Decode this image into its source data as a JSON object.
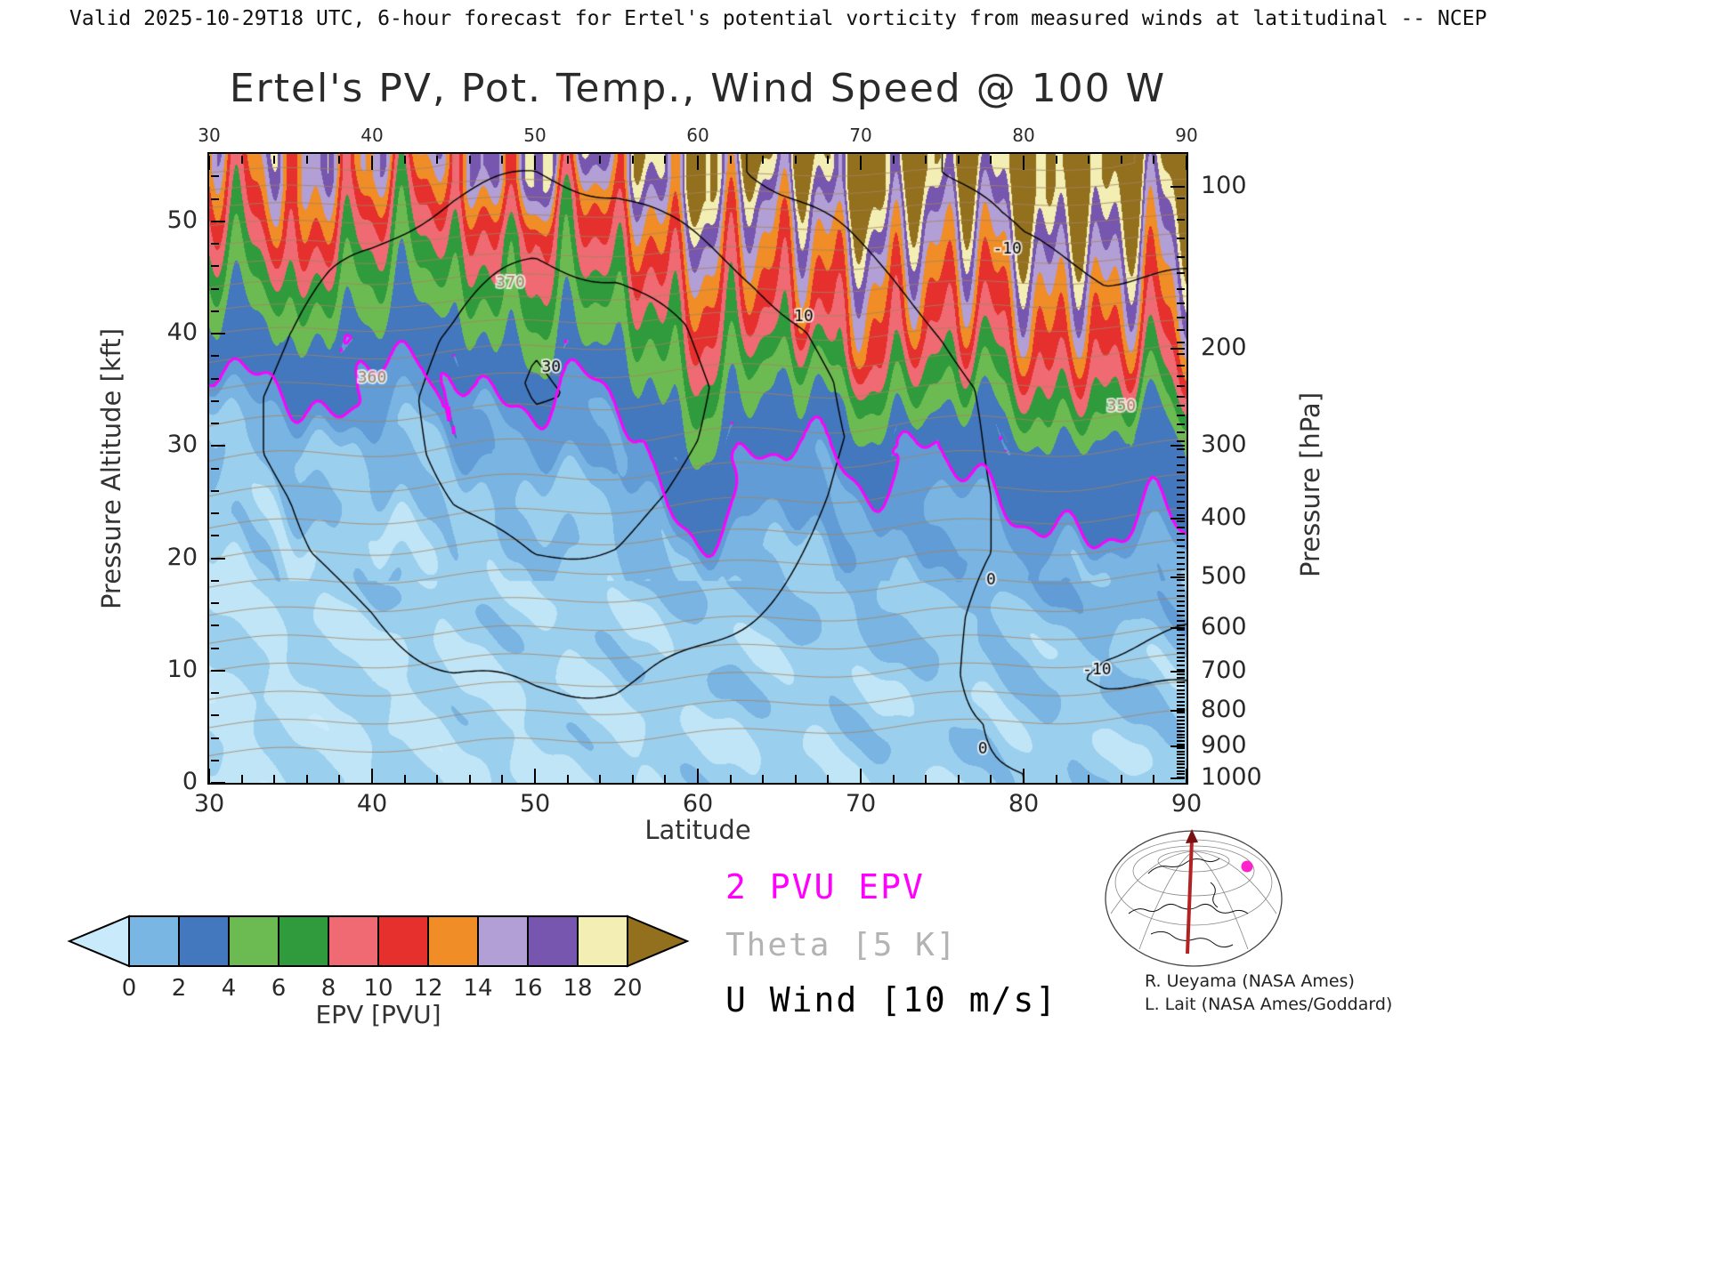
{
  "header": {
    "text": "Valid 2025-10-29T18 UTC, 6-hour forecast for Ertel's potential vorticity from measured winds at latitudinal -- NCEP"
  },
  "title": {
    "text": "Ertel's PV, Pot. Temp., Wind Speed @ 100 W"
  },
  "chart_data": {
    "type": "heatmap",
    "title": "Ertel's PV, Pot. Temp., Wind Speed @ 100 W",
    "xlabel": "Latitude",
    "ylabel_left": "Pressure Altitude [kft]",
    "ylabel_right": "Pressure [hPa]",
    "xlim": [
      30,
      90
    ],
    "ylim_kft": [
      0,
      56
    ],
    "x_ticks": [
      30,
      40,
      50,
      60,
      70,
      80,
      90
    ],
    "y_ticks_kft": [
      0,
      10,
      20,
      30,
      40,
      50
    ],
    "right_ticks_hpa": [
      100,
      200,
      300,
      400,
      500,
      600,
      700,
      800,
      900,
      1000
    ],
    "lats": [
      30,
      35,
      40,
      45,
      50,
      55,
      60,
      65,
      70,
      75,
      80,
      85,
      90
    ],
    "alts_kft": [
      0,
      5,
      10,
      15,
      20,
      25,
      30,
      35,
      40,
      45,
      50,
      55
    ],
    "epv_grid": [
      [
        0.4,
        0.4,
        0.45,
        0.5,
        0.5,
        0.55,
        0.6,
        0.65,
        0.65,
        0.7,
        0.75,
        0.75,
        0.8
      ],
      [
        0.4,
        0.45,
        0.5,
        0.5,
        0.55,
        0.55,
        0.65,
        0.7,
        0.7,
        0.75,
        0.8,
        0.8,
        0.85
      ],
      [
        0.45,
        0.5,
        0.5,
        0.55,
        0.6,
        0.6,
        0.75,
        0.75,
        0.8,
        0.8,
        0.85,
        0.9,
        0.9
      ],
      [
        0.5,
        0.55,
        0.6,
        0.6,
        0.7,
        0.7,
        0.85,
        0.9,
        0.9,
        1.0,
        1.0,
        1.1,
        1.1
      ],
      [
        0.6,
        0.65,
        0.7,
        0.75,
        0.8,
        0.9,
        1.2,
        1.1,
        1.2,
        1.2,
        1.3,
        1.4,
        1.5
      ],
      [
        0.8,
        0.85,
        0.9,
        0.9,
        1.0,
        1.1,
        2.2,
        1.6,
        1.6,
        1.7,
        2.1,
        2.3,
        2.4
      ],
      [
        1.0,
        1.1,
        1.1,
        1.2,
        1.3,
        1.6,
        3.2,
        2.2,
        1.9,
        1.9,
        2.6,
        3.0,
        3.2
      ],
      [
        1.7,
        1.8,
        1.8,
        1.9,
        2.1,
        2.6,
        5.5,
        4.5,
        5.0,
        6.5,
        7.0,
        8.0,
        8.5
      ],
      [
        3.2,
        3.6,
        3.0,
        3.2,
        4.2,
        5.2,
        8.5,
        9.5,
        10.5,
        10.5,
        11.5,
        12.0,
        12.5
      ],
      [
        6.0,
        7.5,
        5.5,
        6.5,
        7.0,
        8.5,
        11.0,
        12.5,
        13.0,
        13.5,
        14.5,
        15.0,
        15.5
      ],
      [
        9.0,
        12.0,
        8.5,
        10.0,
        9.0,
        12.0,
        14.5,
        15.5,
        16.5,
        17.0,
        18.5,
        19.0,
        19.0
      ],
      [
        12.0,
        15.0,
        13.0,
        14.0,
        16.0,
        17.0,
        19.0,
        21.0,
        22.0,
        22.0,
        23.0,
        23.0,
        24.0
      ]
    ],
    "u_wind_grid": [
      [
        2,
        3,
        4,
        4,
        5,
        5,
        4,
        3,
        2,
        1,
        0,
        -1,
        -1
      ],
      [
        3,
        4,
        6,
        7,
        8,
        8,
        7,
        5,
        4,
        2,
        -2,
        -5,
        -6
      ],
      [
        4,
        6,
        8,
        10,
        11,
        11,
        9,
        7,
        5,
        2,
        -7,
        -11,
        -12
      ],
      [
        5,
        7,
        10,
        13,
        15,
        15,
        12,
        9,
        6,
        2,
        -5,
        -8,
        -9
      ],
      [
        6,
        9,
        13,
        17,
        20,
        19,
        15,
        11,
        7,
        3,
        -2,
        -5,
        -6
      ],
      [
        7,
        10,
        15,
        20,
        24,
        23,
        18,
        13,
        8,
        3,
        -2,
        -5,
        -6
      ],
      [
        8,
        11,
        16,
        22,
        28,
        26,
        20,
        14,
        9,
        3,
        -3,
        -6,
        -6
      ],
      [
        8,
        11,
        16,
        23,
        31,
        28,
        21,
        14,
        8,
        2,
        -3,
        -6,
        -7
      ],
      [
        7,
        10,
        15,
        21,
        29,
        26,
        19,
        12,
        6,
        0,
        -5,
        -8,
        -8
      ],
      [
        5,
        8,
        12,
        17,
        22,
        20,
        14,
        8,
        2,
        -3,
        -8,
        -10,
        -10
      ],
      [
        3,
        5,
        8,
        12,
        15,
        13,
        8,
        3,
        -2,
        -7,
        -11,
        -12,
        -12
      ],
      [
        1,
        2,
        4,
        7,
        9,
        7,
        3,
        -2,
        -6,
        -10,
        -13,
        -14,
        -14
      ]
    ],
    "fill_levels": [
      0,
      0.5,
      1,
      1.5,
      2,
      4,
      6,
      8,
      10,
      12,
      14,
      16,
      18,
      20
    ],
    "fill_colors": [
      "#c9eafa",
      "#bfe5f7",
      "#9bcfee",
      "#79b4e2",
      "#619cd6",
      "#4377be",
      "#6cbb52",
      "#2f9b3c",
      "#ef6a72",
      "#e5302e",
      "#f08d26",
      "#b29fd6",
      "#7656ae",
      "#f2eeb4",
      "#93701e"
    ],
    "colorbar": {
      "label": "EPV [PVU]",
      "tick_labels": [
        "0",
        "2",
        "4",
        "6",
        "8",
        "10",
        "12",
        "14",
        "16",
        "18",
        "20"
      ],
      "band_colors": [
        "#7ab6e4",
        "#4377be",
        "#6cbb52",
        "#2f9b3c",
        "#ef6a72",
        "#e5302e",
        "#f08d26",
        "#b29fd6",
        "#7656ae",
        "#f2eeb4"
      ],
      "under_color": "#c9eafa",
      "over_color": "#93701e"
    },
    "overlays": {
      "pv2": {
        "level": 2,
        "color": "#ff00ff",
        "label": "2 PVU EPV"
      },
      "theta": {
        "interval_K": 5,
        "min": 300,
        "max": 410,
        "color": "#a5835f",
        "label": "Theta [5 K]",
        "base_by_alt": [
          295,
          305,
          315,
          325,
          335,
          344,
          352,
          360,
          370,
          382,
          396,
          412
        ],
        "lat_slope": -0.12,
        "labels": [
          {
            "t": "370",
            "lat": 48.5,
            "alt": 44.5
          },
          {
            "t": "360",
            "lat": 40,
            "alt": 36
          },
          {
            "t": "350",
            "lat": 86,
            "alt": 33.5
          }
        ]
      },
      "u_wind": {
        "interval_ms": 10,
        "levels": [
          -10,
          0,
          10,
          20,
          30
        ],
        "color": "#000000",
        "label": "U Wind [10 m/s]",
        "labels": [
          {
            "t": "30",
            "lat": 51,
            "alt": 37
          },
          {
            "t": "10",
            "lat": 66.5,
            "alt": 41.5
          },
          {
            "t": "-10",
            "lat": 79,
            "alt": 47.5
          },
          {
            "t": "-10",
            "lat": 84.5,
            "alt": 10
          },
          {
            "t": "0",
            "lat": 78,
            "alt": 18
          },
          {
            "t": "0",
            "lat": 77.5,
            "alt": 3
          }
        ]
      }
    }
  },
  "legend": {
    "pv": {
      "label": "2 PVU EPV",
      "color": "#ff00ff"
    },
    "theta": {
      "label": "Theta [5 K]",
      "color": "#b3b3b3"
    },
    "wind": {
      "label": "U Wind [10 m/s]",
      "color": "#000000"
    }
  },
  "credits": {
    "line1": "R. Ueyama (NASA Ames)",
    "line2": "L. Lait (NASA Ames/Goddard)"
  }
}
